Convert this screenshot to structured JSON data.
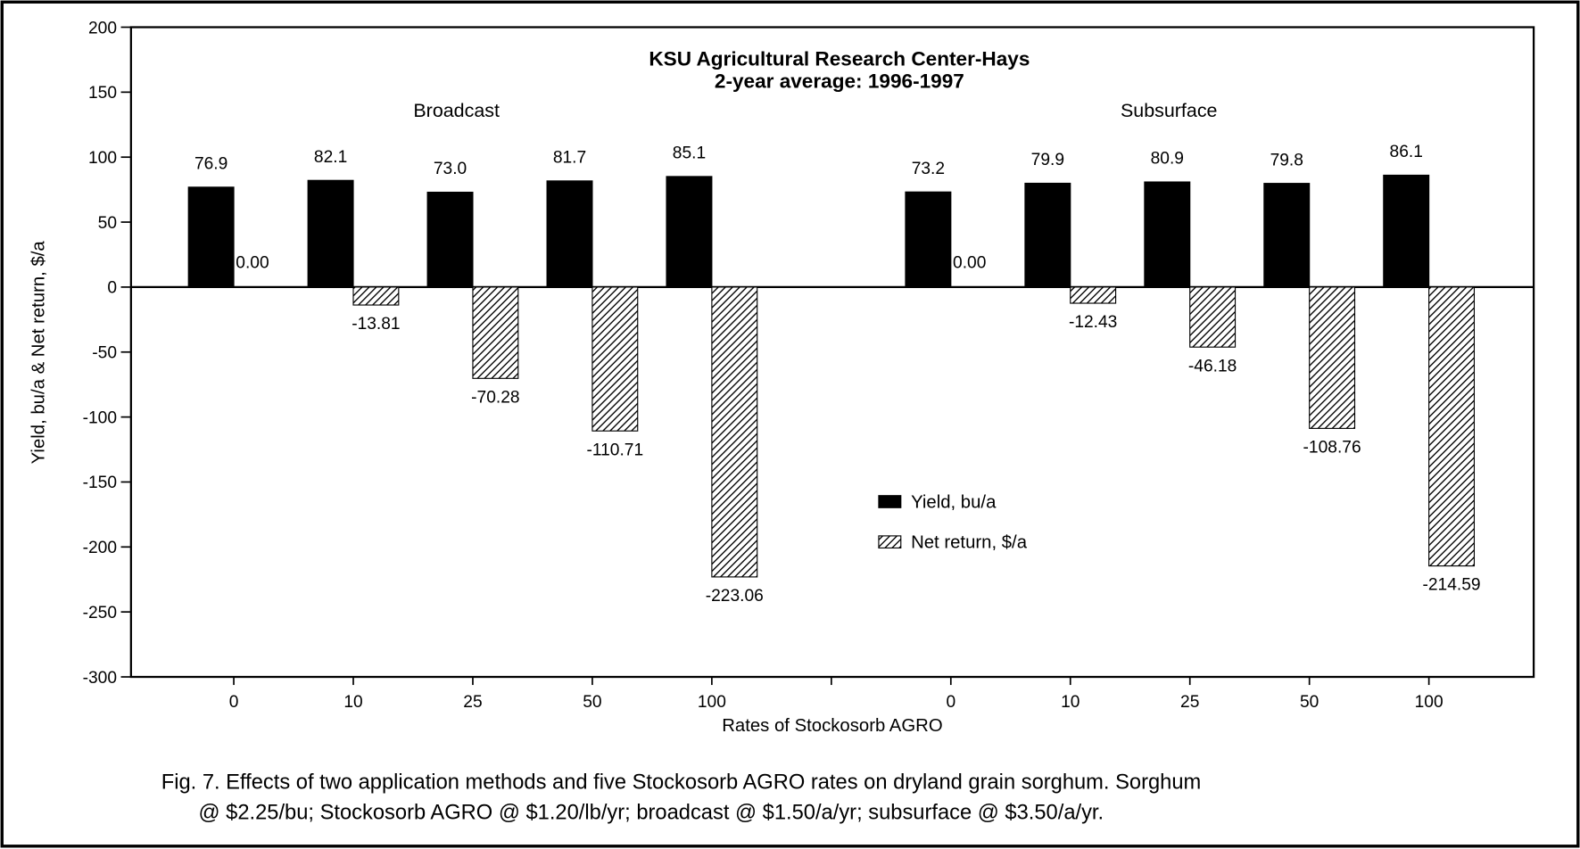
{
  "chart_data": {
    "type": "bar",
    "title": [
      "KSU Agricultural Research Center-Hays",
      "2-year average: 1996-1997"
    ],
    "annotations": [
      "Broadcast",
      "Subsurface"
    ],
    "ylabel": "Yield, bu/a & Net return, $/a",
    "xlabel": "Rates of Stockosorb AGRO",
    "caption": [
      "Fig. 7.  Effects of two application methods and five Stockosorb AGRO rates on dryland grain sorghum.  Sorghum",
      "@ $2.25/bu; Stockosorb AGRO @ $1.20/lb/yr; broadcast @ $1.50/a/yr; subsurface @ $3.50/a/yr."
    ],
    "categories": [
      "0",
      "10",
      "25",
      "50",
      "100",
      null,
      "0",
      "10",
      "25",
      "50",
      "100"
    ],
    "series": [
      {
        "name": "Yield, bu/a",
        "color": "#000000",
        "fill": "solid",
        "values": [
          76.9,
          82.1,
          73.0,
          81.7,
          85.1,
          null,
          73.2,
          79.9,
          80.9,
          79.8,
          86.1
        ],
        "value_labels": [
          "76.9",
          "82.1",
          "73.0",
          "81.7",
          "85.1",
          null,
          "73.2",
          "79.9",
          "80.9",
          "79.8",
          "86.1"
        ]
      },
      {
        "name": "Net return, $/a",
        "color": "#000000",
        "fill": "hatch",
        "values": [
          0.0,
          -13.81,
          -70.28,
          -110.71,
          -223.06,
          null,
          0.0,
          -12.43,
          -46.18,
          -108.76,
          -214.59
        ],
        "value_labels": [
          "0.00",
          "-13.81",
          "-70.28",
          "-110.71",
          "-223.06",
          null,
          "0.00",
          "-12.43",
          "-46.18",
          "-108.76",
          "-214.59"
        ]
      }
    ],
    "ylim": [
      -300,
      200
    ],
    "yticks": [
      -300,
      -250,
      -200,
      -150,
      -100,
      -50,
      0,
      50,
      100,
      150,
      200
    ],
    "grid": false,
    "legend": "center"
  }
}
